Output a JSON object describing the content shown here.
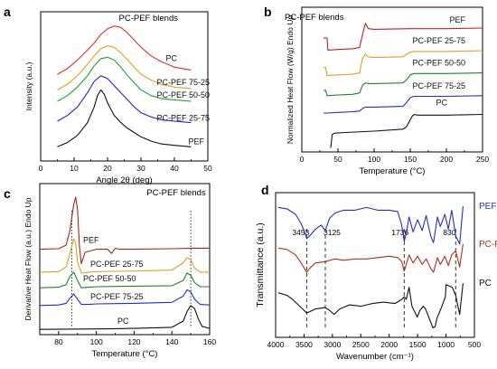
{
  "chart_data": [
    {
      "panel": "a",
      "type": "line",
      "title": "PC-PEF blends",
      "xlabel": "Angle 2θ (deg)",
      "ylabel": "Intensity (a.u.)",
      "xlim": [
        0,
        50
      ],
      "xticks": [
        0,
        10,
        20,
        30,
        40,
        50
      ],
      "grid": false,
      "legend": "inline",
      "series": [
        {
          "name": "PC",
          "color": "#e03020",
          "x": [
            5,
            8,
            11,
            14,
            16,
            18,
            20,
            22,
            24,
            26,
            28,
            30,
            33,
            36,
            40,
            45
          ],
          "y": [
            6.1,
            6.5,
            7.1,
            7.8,
            8.3,
            8.9,
            9.3,
            9.5,
            9.4,
            9.0,
            8.5,
            8.0,
            7.4,
            7.0,
            6.6,
            6.4
          ]
        },
        {
          "name": "PC-PEF 75-25",
          "color": "#e0a020",
          "x": [
            5,
            8,
            11,
            14,
            16,
            18,
            20,
            22,
            24,
            26,
            28,
            30,
            33,
            36,
            40,
            45
          ],
          "y": [
            5.0,
            5.4,
            6.0,
            6.8,
            7.4,
            7.9,
            8.1,
            8.0,
            7.6,
            7.1,
            6.6,
            6.1,
            5.7,
            5.4,
            5.2,
            5.1
          ]
        },
        {
          "name": "PC-PEF 50-50",
          "color": "#20a030",
          "x": [
            5,
            8,
            11,
            14,
            16,
            18,
            20,
            22,
            24,
            26,
            28,
            30,
            33,
            36,
            40,
            45
          ],
          "y": [
            4.2,
            4.6,
            5.2,
            6.0,
            6.7,
            7.2,
            7.3,
            7.1,
            6.6,
            6.0,
            5.5,
            5.0,
            4.6,
            4.4,
            4.3,
            4.2
          ]
        },
        {
          "name": "PC-PEF 25-75",
          "color": "#2020d0",
          "x": [
            5,
            8,
            11,
            14,
            16,
            18,
            20,
            22,
            24,
            26,
            28,
            30,
            33,
            36,
            40,
            45
          ],
          "y": [
            2.8,
            3.2,
            3.8,
            4.8,
            5.6,
            6.0,
            5.8,
            5.3,
            4.8,
            4.3,
            3.8,
            3.4,
            3.1,
            2.9,
            2.8,
            2.7
          ]
        },
        {
          "name": "PEF",
          "color": "#111111",
          "x": [
            5,
            8,
            11,
            14,
            16,
            17,
            18,
            19,
            20,
            22,
            24,
            26,
            28,
            30,
            33,
            36,
            40,
            45
          ],
          "y": [
            1.0,
            1.3,
            1.8,
            2.7,
            3.8,
            4.6,
            5.0,
            4.7,
            4.1,
            3.2,
            2.7,
            2.3,
            2.0,
            1.7,
            1.4,
            1.2,
            1.1,
            1.0
          ]
        }
      ]
    },
    {
      "panel": "b",
      "type": "line",
      "title": "PC-PEF blends",
      "xlabel": "Temperature (°C)",
      "ylabel": "Normalized Heat Flow (W/g) Endo Up",
      "xlim": [
        0,
        250
      ],
      "xticks": [
        0,
        50,
        100,
        150,
        200,
        250
      ],
      "grid": false,
      "legend": "inline",
      "series": [
        {
          "name": "PEF",
          "color": "#c02020",
          "x": [
            30,
            35,
            36,
            50,
            70,
            80,
            85,
            88,
            92,
            100,
            150,
            200,
            250
          ],
          "y": [
            8.2,
            8.2,
            7.3,
            7.35,
            7.4,
            7.5,
            8.7,
            9.3,
            8.9,
            8.85,
            8.9,
            8.9,
            8.95
          ]
        },
        {
          "name": "PC-PEF 25-75",
          "color": "#e0a020",
          "x": [
            30,
            33,
            35,
            50,
            70,
            80,
            84,
            88,
            92,
            100,
            140,
            145,
            150,
            155,
            200,
            250
          ],
          "y": [
            6.0,
            6.0,
            5.4,
            5.45,
            5.5,
            5.6,
            6.7,
            7.0,
            6.8,
            6.75,
            6.8,
            7.0,
            7.15,
            7.2,
            7.2,
            7.25
          ]
        },
        {
          "name": "PC-PEF 50-50",
          "color": "#208030",
          "x": [
            30,
            33,
            35,
            50,
            70,
            80,
            84,
            88,
            92,
            100,
            140,
            145,
            150,
            155,
            200,
            250
          ],
          "y": [
            4.3,
            4.3,
            3.9,
            3.95,
            4.0,
            4.1,
            4.7,
            4.85,
            4.8,
            4.8,
            4.85,
            5.1,
            5.45,
            5.55,
            5.55,
            5.6
          ]
        },
        {
          "name": "PC-PEF 75-25",
          "color": "#2030c0",
          "x": [
            30,
            35,
            50,
            70,
            80,
            84,
            88,
            92,
            100,
            140,
            145,
            150,
            155,
            200,
            250
          ],
          "y": [
            2.6,
            2.6,
            2.65,
            2.7,
            2.75,
            2.95,
            3.05,
            3.05,
            3.05,
            3.1,
            3.4,
            3.75,
            3.85,
            3.85,
            3.9
          ]
        },
        {
          "name": "PC",
          "color": "#111111",
          "x": [
            40,
            42,
            45,
            60,
            100,
            140,
            145,
            150,
            153,
            156,
            160,
            200,
            250
          ],
          "y": [
            0.0,
            1.0,
            1.1,
            1.15,
            1.25,
            1.4,
            1.6,
            2.1,
            2.4,
            2.5,
            2.45,
            2.45,
            2.5
          ]
        }
      ]
    },
    {
      "panel": "c",
      "type": "line",
      "title": "PC-PEF blends",
      "xlabel": "Temperature (°C)",
      "ylabel": "Derivative Heat Flow (a.u.) Endo Up",
      "xlim": [
        70,
        160
      ],
      "xticks": [
        80,
        100,
        120,
        140,
        160
      ],
      "grid": false,
      "legend": "inline",
      "series": [
        {
          "name": "PEF",
          "color": "#a02820",
          "x": [
            70,
            80,
            84,
            86,
            88,
            89,
            90,
            91,
            92,
            94,
            100,
            106,
            108,
            110,
            112,
            120,
            140,
            150,
            160
          ],
          "y": [
            8.2,
            8.25,
            8.6,
            10.0,
            12.5,
            13.2,
            12.0,
            8.5,
            6.8,
            7.9,
            8.2,
            8.2,
            7.8,
            8.3,
            8.2,
            8.2,
            8.25,
            8.3,
            8.3
          ]
        },
        {
          "name": "PC-PEF 25-75",
          "color": "#e0a020",
          "x": [
            70,
            80,
            84,
            86,
            88,
            89,
            90,
            92,
            96,
            100,
            120,
            140,
            146,
            148,
            150,
            152,
            155,
            160
          ],
          "y": [
            6.0,
            6.05,
            6.5,
            7.8,
            9.2,
            8.8,
            7.0,
            5.9,
            6.0,
            6.05,
            6.1,
            6.2,
            6.9,
            7.4,
            7.2,
            6.4,
            6.0,
            6.0
          ]
        },
        {
          "name": "PC-PEF 50-50",
          "color": "#208030",
          "x": [
            70,
            80,
            84,
            86,
            88,
            90,
            92,
            96,
            100,
            120,
            140,
            146,
            148,
            150,
            152,
            155,
            160
          ],
          "y": [
            4.5,
            4.55,
            4.8,
            5.6,
            6.0,
            5.2,
            4.5,
            4.55,
            4.6,
            4.65,
            4.7,
            5.2,
            5.9,
            5.7,
            5.0,
            4.6,
            4.6
          ]
        },
        {
          "name": "PC-PEF 75-25",
          "color": "#2030c0",
          "x": [
            70,
            80,
            84,
            86,
            88,
            90,
            92,
            96,
            100,
            120,
            140,
            146,
            148,
            150,
            152,
            155,
            160
          ],
          "y": [
            2.8,
            2.85,
            3.0,
            3.5,
            3.9,
            3.4,
            2.9,
            2.9,
            2.95,
            3.0,
            3.1,
            3.7,
            4.3,
            4.1,
            3.4,
            2.9,
            2.85
          ]
        },
        {
          "name": "PC",
          "color": "#111111",
          "x": [
            70,
            100,
            120,
            140,
            146,
            148,
            150,
            152,
            154,
            156,
            160
          ],
          "y": [
            0.5,
            0.55,
            0.6,
            0.7,
            1.3,
            2.2,
            2.8,
            2.5,
            1.5,
            0.8,
            0.6
          ]
        }
      ],
      "reference_lines_x": [
        87,
        150
      ]
    },
    {
      "panel": "d",
      "type": "line",
      "title": "",
      "xlabel": "Wavenumber (cm⁻¹)",
      "ylabel": "Transmittance (a.u.)",
      "xlim": [
        4000,
        500
      ],
      "xticks": [
        4000,
        3500,
        3000,
        2500,
        2000,
        1500,
        1000,
        500
      ],
      "grid": false,
      "legend": "inline",
      "annotations": [
        {
          "label": "3453",
          "x": 3453
        },
        {
          "label": "3125",
          "x": 3125
        },
        {
          "label": "1736",
          "x": 1736
        },
        {
          "label": "830",
          "x": 830
        }
      ],
      "series": [
        {
          "name": "PEF",
          "color": "#2030c0",
          "x": [
            3950,
            3800,
            3650,
            3550,
            3480,
            3453,
            3400,
            3300,
            3200,
            3125,
            3050,
            2950,
            2800,
            2600,
            2400,
            2200,
            2000,
            1850,
            1780,
            1736,
            1700,
            1650,
            1580,
            1500,
            1420,
            1350,
            1270,
            1220,
            1150,
            1100,
            1020,
            960,
            900,
            830,
            760,
            700
          ],
          "y": [
            9.1,
            9.0,
            8.6,
            7.9,
            7.2,
            6.8,
            7.0,
            7.5,
            7.8,
            7.4,
            8.3,
            8.7,
            8.9,
            8.9,
            9.1,
            8.9,
            8.9,
            8.8,
            7.8,
            6.6,
            7.2,
            8.4,
            7.3,
            8.2,
            7.4,
            8.5,
            7.0,
            6.5,
            8.4,
            7.7,
            8.6,
            7.5,
            8.9,
            7.0,
            6.4,
            9.2
          ]
        },
        {
          "name": "PC-PEF",
          "color": "#b03020",
          "x": [
            3950,
            3800,
            3650,
            3550,
            3480,
            3453,
            3400,
            3300,
            3125,
            3050,
            2950,
            2800,
            2600,
            2400,
            2200,
            2000,
            1850,
            1780,
            1736,
            1700,
            1650,
            1580,
            1500,
            1420,
            1350,
            1270,
            1220,
            1150,
            1100,
            1020,
            960,
            900,
            830,
            760,
            700
          ],
          "y": [
            6.1,
            6.0,
            5.6,
            5.0,
            4.5,
            4.3,
            4.6,
            5.0,
            5.1,
            5.2,
            5.3,
            5.2,
            5.3,
            5.3,
            5.4,
            5.5,
            5.4,
            5.1,
            4.4,
            4.9,
            5.6,
            5.0,
            5.5,
            4.9,
            5.3,
            4.6,
            4.3,
            5.4,
            4.9,
            5.5,
            4.8,
            5.6,
            5.9,
            4.7,
            6.4
          ]
        },
        {
          "name": "PC",
          "color": "#111111",
          "x": [
            3950,
            3800,
            3700,
            3600,
            3500,
            3453,
            3400,
            3300,
            3125,
            3050,
            2970,
            2870,
            2700,
            2500,
            2300,
            2100,
            1900,
            1780,
            1736,
            1700,
            1650,
            1600,
            1505,
            1460,
            1400,
            1360,
            1230,
            1190,
            1160,
            1080,
            1010,
            1000,
            890,
            830,
            760,
            700
          ],
          "y": [
            2.8,
            2.6,
            2.3,
            1.9,
            1.5,
            1.3,
            1.4,
            1.6,
            1.7,
            1.5,
            1.2,
            1.6,
            1.9,
            1.8,
            2.0,
            2.1,
            2.0,
            2.3,
            2.5,
            2.3,
            3.2,
            1.8,
            1.0,
            1.5,
            1.8,
            1.6,
            0.2,
            0.3,
            0.9,
            1.7,
            2.5,
            3.4,
            3.2,
            2.6,
            1.2,
            3.5
          ]
        }
      ],
      "reference_lines_x": [
        3453,
        3125,
        1736,
        830
      ]
    }
  ]
}
